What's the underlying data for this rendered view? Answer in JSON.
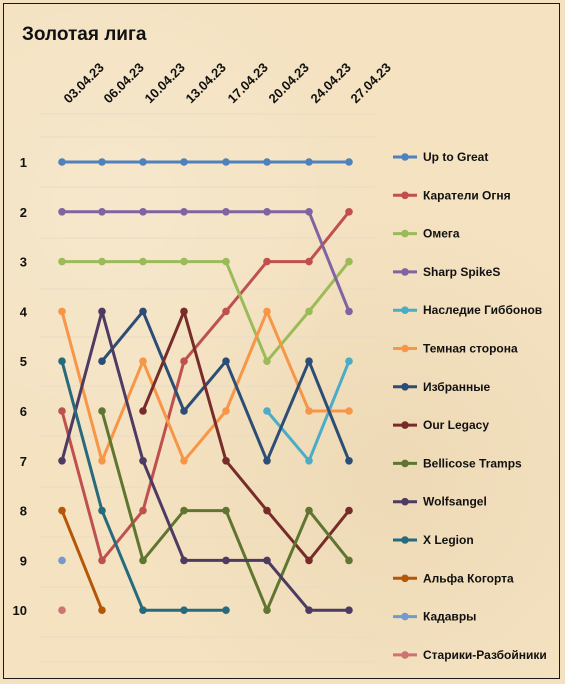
{
  "chart_data": {
    "type": "line",
    "title": "Золотая лига",
    "x": [
      "03.04.23",
      "06.04.23",
      "10.04.23",
      "13.04.23",
      "17.04.23",
      "20.04.23",
      "24.04.23",
      "27.04.23"
    ],
    "ylim": [
      1,
      10
    ],
    "yticks": [
      "1",
      "2",
      "3",
      "4",
      "5",
      "6",
      "7",
      "8",
      "9",
      "10"
    ],
    "y_inverted": true,
    "grid": true,
    "legend_position": "right",
    "series": [
      {
        "name": "Up to Great",
        "color": "#4f81bd",
        "values": [
          1,
          1,
          1,
          1,
          1,
          1,
          1,
          1
        ]
      },
      {
        "name": "Каратели Огня",
        "color": "#c0504d",
        "values": [
          6,
          9,
          8,
          5,
          4,
          3,
          3,
          2
        ]
      },
      {
        "name": "Омега",
        "color": "#9bbb59",
        "values": [
          3,
          3,
          3,
          3,
          3,
          5,
          4,
          3
        ]
      },
      {
        "name": "Sharp SpikeS",
        "color": "#8064a2",
        "values": [
          2,
          2,
          2,
          2,
          2,
          2,
          2,
          4
        ]
      },
      {
        "name": "Наследие Гиббонов",
        "color": "#4bacc6",
        "values": [
          null,
          null,
          null,
          null,
          null,
          6,
          7,
          5
        ]
      },
      {
        "name": "Темная сторона",
        "color": "#f79646",
        "values": [
          4,
          7,
          5,
          7,
          6,
          4,
          6,
          6
        ]
      },
      {
        "name": "Избранные",
        "color": "#2c4d75",
        "values": [
          null,
          5,
          4,
          6,
          5,
          7,
          5,
          7
        ]
      },
      {
        "name": "Our Legacy",
        "color": "#772c2a",
        "values": [
          null,
          null,
          6,
          4,
          7,
          8,
          9,
          8
        ]
      },
      {
        "name": "Bellicose Tramps",
        "color": "#5f7530",
        "values": [
          null,
          6,
          9,
          8,
          8,
          10,
          8,
          9
        ]
      },
      {
        "name": "Wolfsangel",
        "color": "#4d3b62",
        "values": [
          7,
          4,
          7,
          9,
          9,
          9,
          10,
          10
        ]
      },
      {
        "name": "X Legion",
        "color": "#276a7c",
        "values": [
          5,
          8,
          10,
          10,
          10,
          null,
          null,
          null
        ]
      },
      {
        "name": "Альфа Когорта",
        "color": "#b65708",
        "values": [
          8,
          10,
          null,
          null,
          null,
          null,
          null,
          null
        ]
      },
      {
        "name": "Кадавры",
        "color": "#729aca",
        "values": [
          9,
          null,
          null,
          null,
          null,
          null,
          null,
          null
        ]
      },
      {
        "name": "Старики-Разбойники",
        "color": "#cd7371",
        "values": [
          10,
          null,
          null,
          null,
          null,
          null,
          null,
          null
        ]
      }
    ]
  }
}
